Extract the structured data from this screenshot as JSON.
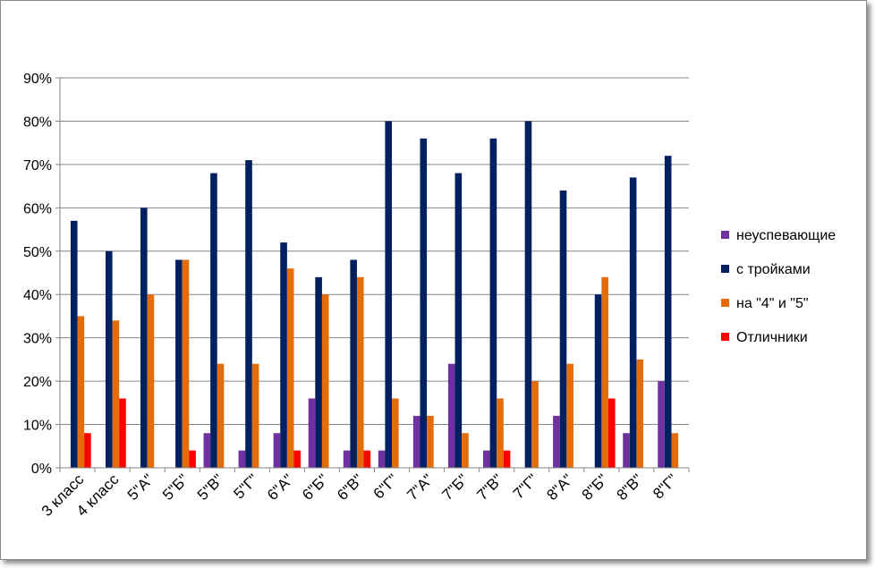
{
  "chart_data": {
    "type": "bar",
    "title": "",
    "xlabel": "",
    "ylabel": "",
    "ylim": [
      0,
      90
    ],
    "y_tick_labels": [
      "0%",
      "10%",
      "20%",
      "30%",
      "40%",
      "50%",
      "60%",
      "70%",
      "80%",
      "90%"
    ],
    "y_ticks": [
      0,
      10,
      20,
      30,
      40,
      50,
      60,
      70,
      80,
      90
    ],
    "grid": true,
    "legend_position": "right",
    "categories": [
      "3 класс",
      "4 класс",
      "5\"А\"",
      "5\"Б\"",
      "5\"В\"",
      "5\"Г\"",
      "6\"А\"",
      "6\"Б\"",
      "6\"В\"",
      "6\"Г\"",
      "7\"А\"",
      "7\"Б\"",
      "7\"В\"",
      "7\"Г\"",
      "8\"А\"",
      "8\"Б\"",
      "8\"В\"",
      "8\"Г\""
    ],
    "series": [
      {
        "name": "неуспевающие",
        "color": "#7030a0",
        "values": [
          0,
          0,
          0,
          0,
          8,
          4,
          8,
          16,
          4,
          4,
          12,
          24,
          4,
          0,
          12,
          0,
          8,
          20
        ]
      },
      {
        "name": "с тройками",
        "color": "#002060",
        "values": [
          57,
          50,
          60,
          48,
          68,
          71,
          52,
          44,
          48,
          80,
          76,
          68,
          76,
          80,
          64,
          40,
          67,
          72
        ]
      },
      {
        "name": "на \"4\" и \"5\"",
        "color": "#e46c0a",
        "values": [
          35,
          34,
          40,
          48,
          24,
          24,
          46,
          40,
          44,
          16,
          12,
          8,
          16,
          20,
          24,
          44,
          25,
          8
        ]
      },
      {
        "name": "Отличники",
        "color": "#ff0000",
        "values": [
          8,
          16,
          0,
          4,
          0,
          0,
          4,
          0,
          4,
          0,
          0,
          0,
          4,
          0,
          0,
          16,
          0,
          0
        ]
      }
    ]
  }
}
